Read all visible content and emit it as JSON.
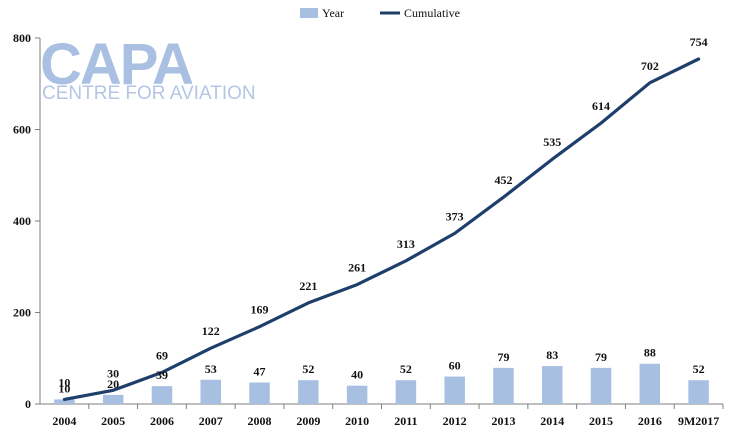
{
  "logo": {
    "name": "CAPA",
    "tagline": "CENTRE FOR AVIATION"
  },
  "colors": {
    "bar": "#a7c0e2",
    "line": "#1f3f6b",
    "axis": "#7f7f7f"
  },
  "chart_data": {
    "type": "bar",
    "categories": [
      "2004",
      "2005",
      "2006",
      "2007",
      "2008",
      "2009",
      "2010",
      "2011",
      "2012",
      "2013",
      "2014",
      "2015",
      "2016",
      "9M2017"
    ],
    "series": [
      {
        "name": "Year",
        "type": "bar",
        "values": [
          10,
          20,
          39,
          53,
          47,
          52,
          40,
          52,
          60,
          79,
          83,
          79,
          88,
          52
        ]
      },
      {
        "name": "Cumulative",
        "type": "line",
        "values": [
          10,
          30,
          69,
          122,
          169,
          221,
          261,
          313,
          373,
          452,
          535,
          614,
          702,
          754
        ]
      }
    ],
    "ylim": [
      0,
      800
    ],
    "yticks": [
      0,
      200,
      400,
      600,
      800
    ],
    "legend": "top-center",
    "grid": false,
    "data_labels": true
  }
}
